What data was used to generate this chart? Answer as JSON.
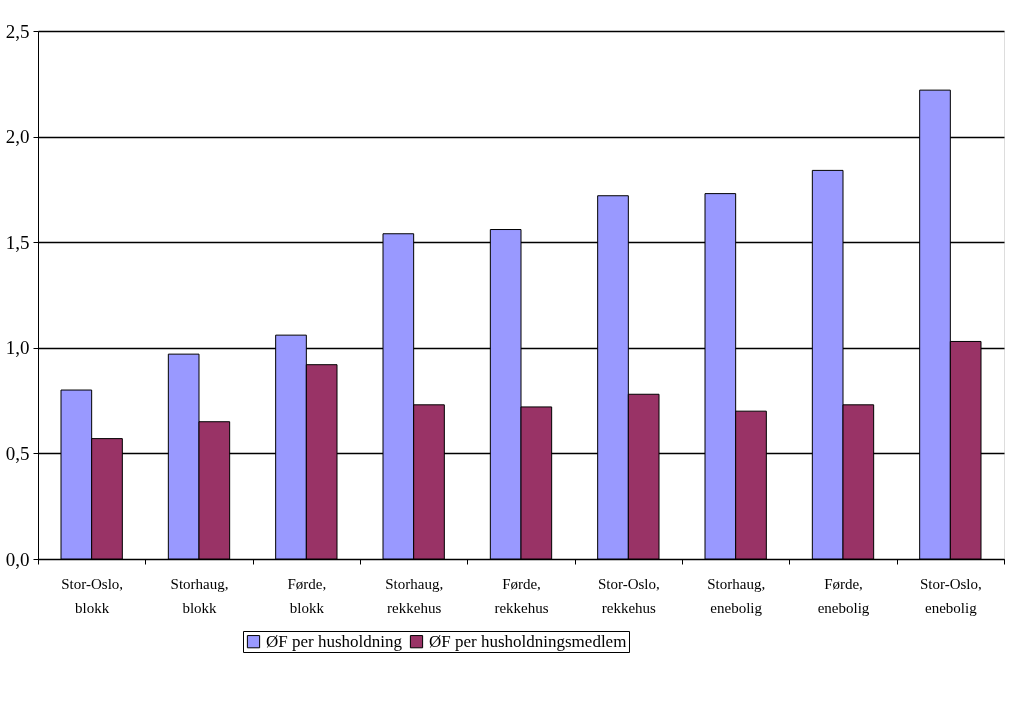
{
  "chart_data": {
    "type": "bar",
    "categories": [
      "Stor-Oslo, blokk",
      "Storhaug, blokk",
      "Førde, blokk",
      "Storhaug, rekkehus",
      "Førde, rekkehus",
      "Stor-Oslo, rekkehus",
      "Storhaug, enebolig",
      "Førde, enebolig",
      "Stor-Oslo, enebolig"
    ],
    "series": [
      {
        "name": "ØF per husholdning",
        "color": "#9999ff",
        "values": [
          0.8,
          0.97,
          1.06,
          1.54,
          1.56,
          1.72,
          1.73,
          1.84,
          2.22
        ]
      },
      {
        "name": "ØF per husholdningsmedlem",
        "color": "#993366",
        "values": [
          0.57,
          0.65,
          0.92,
          0.73,
          0.72,
          0.78,
          0.7,
          0.73,
          1.03
        ]
      }
    ],
    "ylim": [
      0,
      2.5
    ],
    "yticks": [
      {
        "value": 0,
        "label": "0,0"
      },
      {
        "value": 0.5,
        "label": "0,5"
      },
      {
        "value": 1,
        "label": "1,0"
      },
      {
        "value": 1.5,
        "label": "1,5"
      },
      {
        "value": 2,
        "label": "2,0"
      },
      {
        "value": 2.5,
        "label": "2,5"
      }
    ],
    "grid": "y",
    "legend": "bottom"
  }
}
